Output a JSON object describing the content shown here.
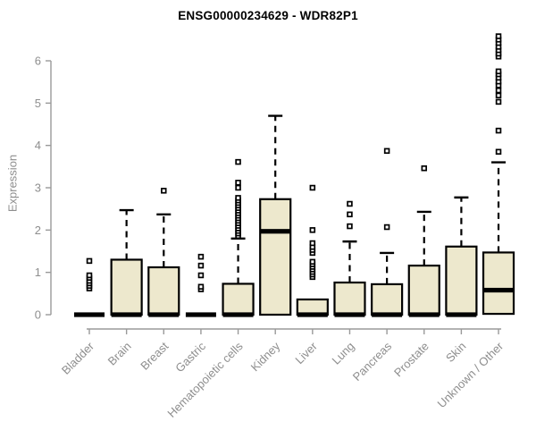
{
  "chart_data": {
    "type": "box",
    "title": "ENSG00000234629 - WDR82P1",
    "ylabel": "Expression",
    "xlabel": "",
    "ylim": [
      0,
      6.7
    ],
    "yticks": [
      0,
      1,
      2,
      3,
      4,
      5,
      6
    ],
    "grid": false,
    "legend": "none",
    "box_fill": "#EDE8CD",
    "box_stroke": "#000000",
    "axis_color": "#9a9a9a",
    "label_color": "#8e8e8e",
    "title_color": "#000000",
    "categories": [
      "Bladder",
      "Brain",
      "Breast",
      "Gastric",
      "Hematopoietic cells",
      "Kidney",
      "Liver",
      "Lung",
      "Pancreas",
      "Prostate",
      "Skin",
      "Unknown / Other"
    ],
    "series": [
      {
        "name": "Bladder",
        "q1": 0,
        "median": 0,
        "q3": 0,
        "whisker_low": 0,
        "whisker_high": 0,
        "outliers": [
          0.62,
          0.68,
          0.74,
          0.8,
          0.87,
          0.93,
          1.27
        ]
      },
      {
        "name": "Brain",
        "q1": 0,
        "median": 0,
        "q3": 1.3,
        "whisker_low": 0,
        "whisker_high": 2.47,
        "outliers": []
      },
      {
        "name": "Breast",
        "q1": 0,
        "median": 0,
        "q3": 1.12,
        "whisker_low": 0,
        "whisker_high": 2.37,
        "outliers": [
          2.93
        ]
      },
      {
        "name": "Gastric",
        "q1": 0,
        "median": 0,
        "q3": 0,
        "whisker_low": 0,
        "whisker_high": 0,
        "outliers": [
          0.6,
          0.66,
          0.93,
          1.16,
          1.37
        ]
      },
      {
        "name": "Hematopoietic cells",
        "q1": 0,
        "median": 0,
        "q3": 0.73,
        "whisker_low": 0,
        "whisker_high": 1.8,
        "outliers": [
          1.86,
          1.92,
          1.98,
          2.04,
          2.1,
          2.16,
          2.22,
          2.28,
          2.34,
          2.4,
          2.46,
          2.52,
          2.58,
          2.64,
          2.7,
          2.76,
          3.0,
          3.12,
          3.61
        ]
      },
      {
        "name": "Kidney",
        "q1": 0,
        "median": 1.97,
        "q3": 2.73,
        "whisker_low": 0,
        "whisker_high": 4.7,
        "outliers": []
      },
      {
        "name": "Liver",
        "q1": 0,
        "median": 0,
        "q3": 0.36,
        "whisker_low": 0,
        "whisker_high": 0.36,
        "outliers": [
          0.89,
          0.95,
          1.01,
          1.07,
          1.13,
          1.19,
          1.25,
          1.46,
          1.53,
          1.6,
          1.69,
          2.0,
          3.0
        ]
      },
      {
        "name": "Lung",
        "q1": 0,
        "median": 0,
        "q3": 0.76,
        "whisker_low": 0,
        "whisker_high": 1.73,
        "outliers": [
          2.09,
          2.37,
          2.62
        ]
      },
      {
        "name": "Pancreas",
        "q1": 0,
        "median": 0,
        "q3": 0.72,
        "whisker_low": 0,
        "whisker_high": 1.46,
        "outliers": [
          2.07,
          3.87
        ]
      },
      {
        "name": "Prostate",
        "q1": 0,
        "median": 0,
        "q3": 1.16,
        "whisker_low": 0,
        "whisker_high": 2.43,
        "outliers": [
          3.46
        ]
      },
      {
        "name": "Skin",
        "q1": 0,
        "median": 0,
        "q3": 1.61,
        "whisker_low": 0,
        "whisker_high": 2.77,
        "outliers": []
      },
      {
        "name": "Unknown / Other",
        "q1": 0.02,
        "median": 0.58,
        "q3": 1.47,
        "whisker_low": 0.02,
        "whisker_high": 3.6,
        "outliers": [
          3.85,
          4.35,
          5.03,
          5.18,
          5.3,
          5.42,
          5.51,
          5.6,
          5.68,
          5.75,
          6.1,
          6.17,
          6.25,
          6.33,
          6.42,
          6.5,
          6.58
        ]
      }
    ]
  }
}
